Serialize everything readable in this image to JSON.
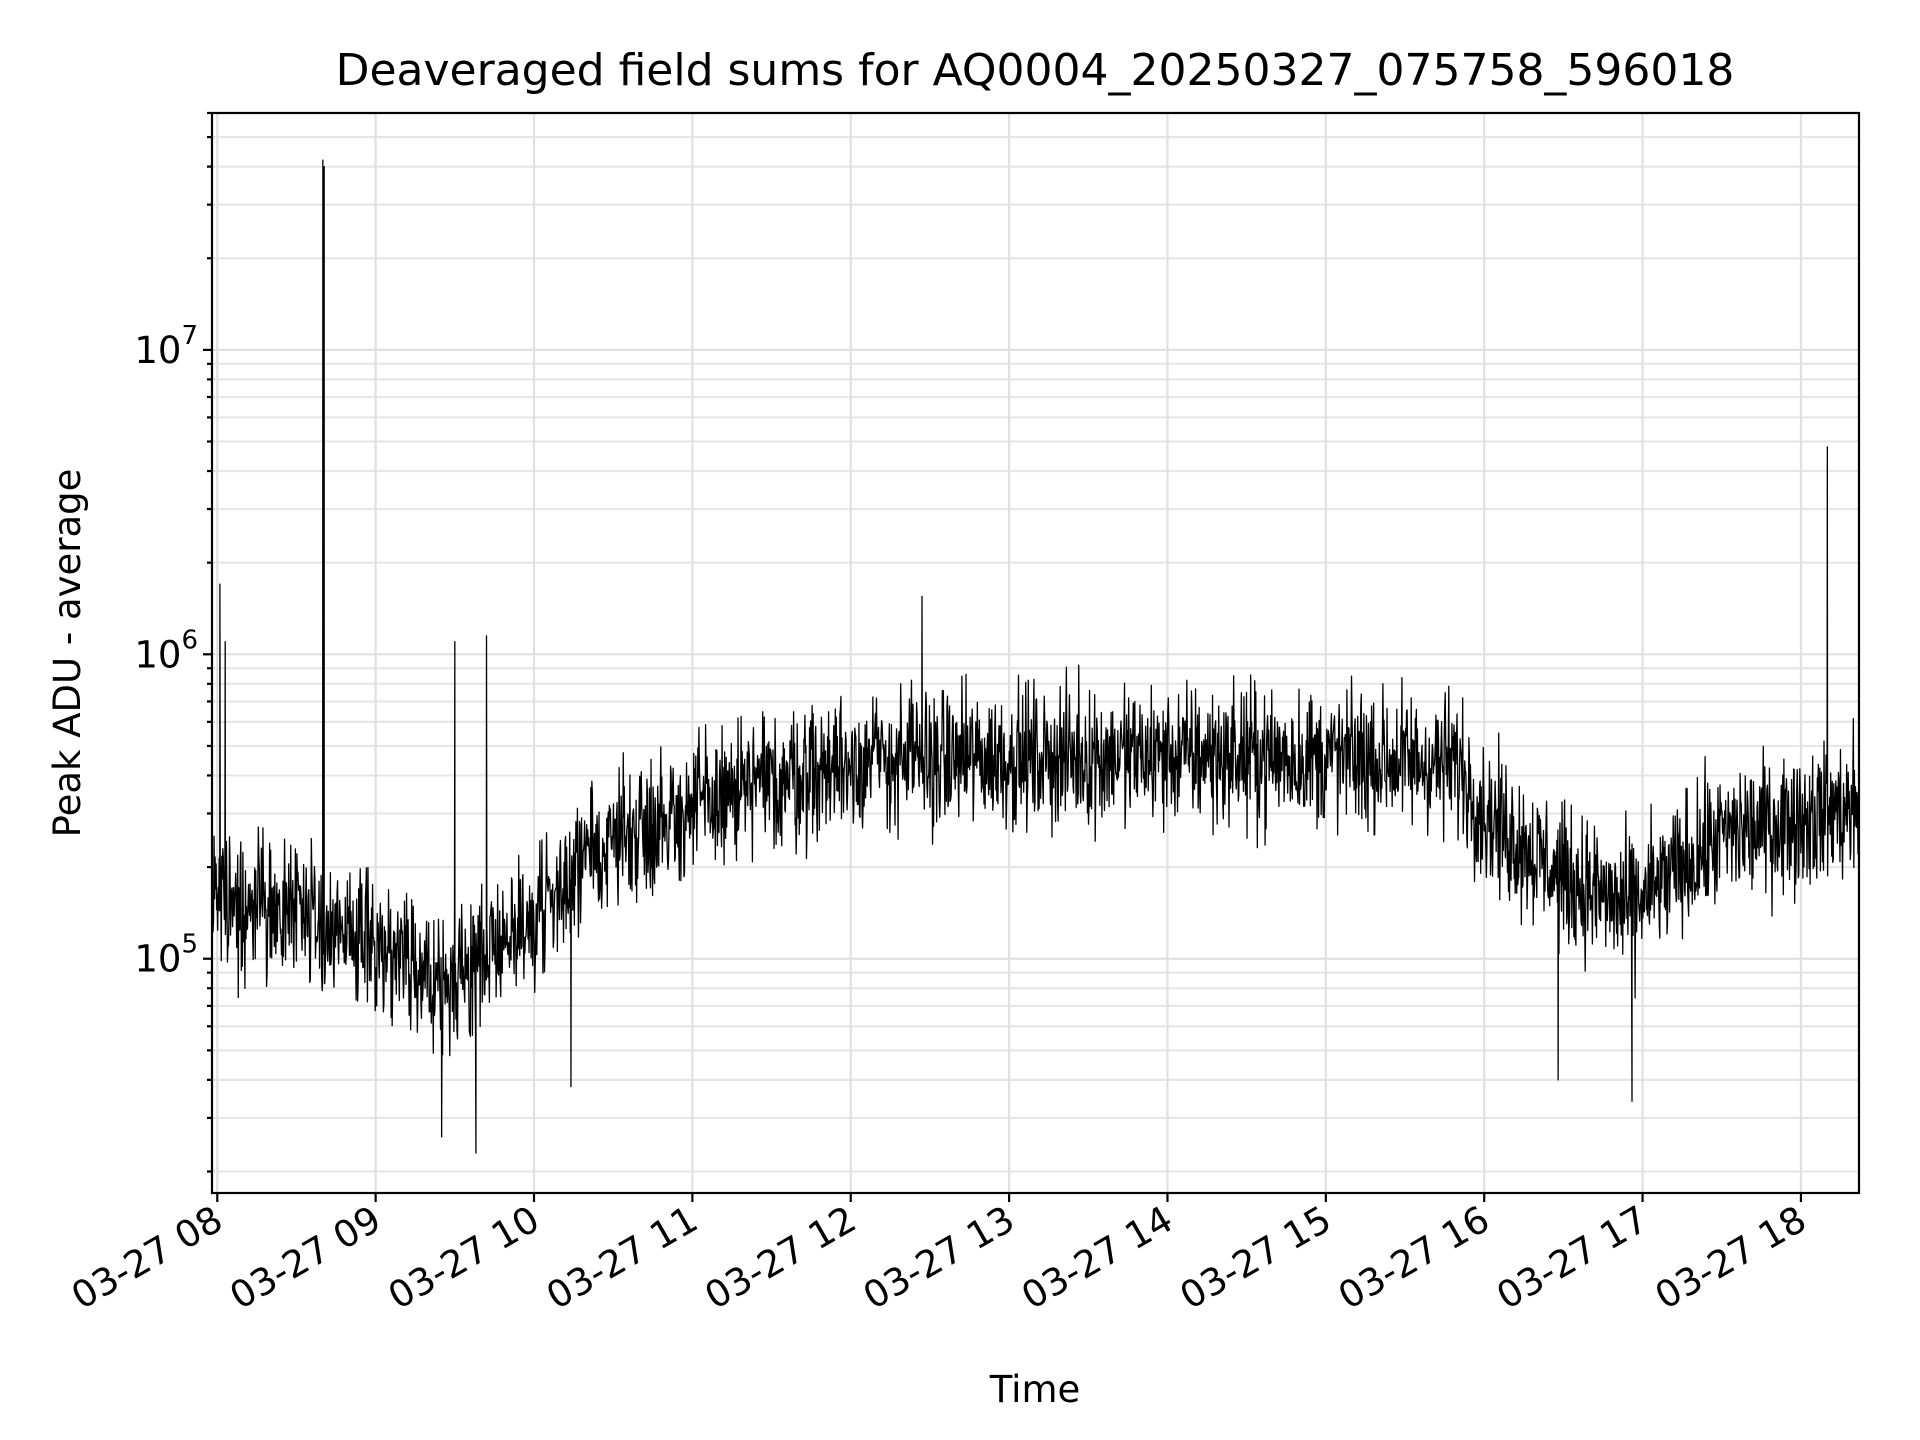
{
  "chart_data": {
    "type": "line",
    "title": "Deaveraged field sums for AQ0004_20250327_075758_596018",
    "xlabel": "Time",
    "ylabel": "Peak ADU - average",
    "yscale": "log",
    "xlim": [
      "2025-03-27T07:58:00",
      "2025-03-27T18:22:00"
    ],
    "ylim": [
      17000,
      60000000
    ],
    "grid": true,
    "line_color": "#000000",
    "x_ticks": [
      {
        "label": "03-27 08",
        "value": "2025-03-27T08:00:00"
      },
      {
        "label": "03-27 09",
        "value": "2025-03-27T09:00:00"
      },
      {
        "label": "03-27 10",
        "value": "2025-03-27T10:00:00"
      },
      {
        "label": "03-27 11",
        "value": "2025-03-27T11:00:00"
      },
      {
        "label": "03-27 12",
        "value": "2025-03-27T12:00:00"
      },
      {
        "label": "03-27 13",
        "value": "2025-03-27T13:00:00"
      },
      {
        "label": "03-27 14",
        "value": "2025-03-27T14:00:00"
      },
      {
        "label": "03-27 15",
        "value": "2025-03-27T15:00:00"
      },
      {
        "label": "03-27 16",
        "value": "2025-03-27T16:00:00"
      },
      {
        "label": "03-27 17",
        "value": "2025-03-27T17:00:00"
      },
      {
        "label": "03-27 18",
        "value": "2025-03-27T18:00:00"
      }
    ],
    "y_ticks": [
      {
        "base": "10",
        "exp": "5",
        "value": 100000
      },
      {
        "base": "10",
        "exp": "6",
        "value": 1000000
      },
      {
        "base": "10",
        "exp": "7",
        "value": 10000000
      }
    ],
    "series": [
      {
        "baseline_profile": [
          {
            "x": "2025-03-27T07:58:00",
            "y": 160000
          },
          {
            "x": "2025-03-27T08:30:00",
            "y": 150000
          },
          {
            "x": "2025-03-27T09:00:00",
            "y": 110000
          },
          {
            "x": "2025-03-27T09:30:00",
            "y": 90000
          },
          {
            "x": "2025-03-27T10:00:00",
            "y": 140000
          },
          {
            "x": "2025-03-27T10:30:00",
            "y": 260000
          },
          {
            "x": "2025-03-27T11:00:00",
            "y": 320000
          },
          {
            "x": "2025-03-27T11:30:00",
            "y": 390000
          },
          {
            "x": "2025-03-27T12:00:00",
            "y": 460000
          },
          {
            "x": "2025-03-27T13:00:00",
            "y": 470000
          },
          {
            "x": "2025-03-27T14:00:00",
            "y": 480000
          },
          {
            "x": "2025-03-27T15:00:00",
            "y": 470000
          },
          {
            "x": "2025-03-27T15:50:00",
            "y": 450000
          },
          {
            "x": "2025-03-27T16:00:00",
            "y": 310000
          },
          {
            "x": "2025-03-27T16:30:00",
            "y": 190000
          },
          {
            "x": "2025-03-27T16:55:00",
            "y": 150000
          },
          {
            "x": "2025-03-27T17:30:00",
            "y": 260000
          },
          {
            "x": "2025-03-27T18:00:00",
            "y": 300000
          },
          {
            "x": "2025-03-27T18:22:00",
            "y": 320000
          }
        ],
        "scatter_factor_range": [
          0.45,
          2.1
        ],
        "spikes": [
          {
            "x": "2025-03-27T08:01:00",
            "y": 1700000
          },
          {
            "x": "2025-03-27T08:03:00",
            "y": 1100000
          },
          {
            "x": "2025-03-27T08:40:00",
            "y": 42000000
          },
          {
            "x": "2025-03-27T08:40:30",
            "y": 40000000
          },
          {
            "x": "2025-03-27T09:30:00",
            "y": 1100000
          },
          {
            "x": "2025-03-27T09:42:00",
            "y": 1150000
          },
          {
            "x": "2025-03-27T09:25:00",
            "y": 26000
          },
          {
            "x": "2025-03-27T09:38:00",
            "y": 23000
          },
          {
            "x": "2025-03-27T10:14:00",
            "y": 38000
          },
          {
            "x": "2025-03-27T12:27:00",
            "y": 1550000
          },
          {
            "x": "2025-03-27T16:28:00",
            "y": 40000
          },
          {
            "x": "2025-03-27T16:56:00",
            "y": 34000
          },
          {
            "x": "2025-03-27T18:10:00",
            "y": 4800000
          }
        ]
      }
    ]
  }
}
